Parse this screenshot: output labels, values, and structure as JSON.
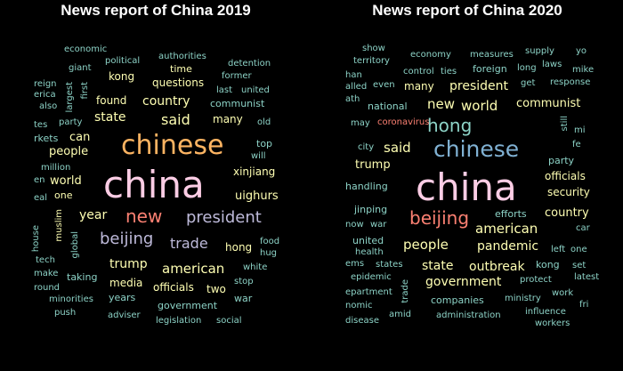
{
  "panels": [
    {
      "title": "News report of China 2019",
      "words": [
        {
          "t": "economic",
          "c": "#8dd3c7"
        },
        {
          "t": "political",
          "c": "#8dd3c7"
        },
        {
          "t": "authorities",
          "c": "#8dd3c7"
        },
        {
          "t": "time",
          "c": "#ffffb3"
        },
        {
          "t": "detention",
          "c": "#8dd3c7"
        },
        {
          "t": "giant",
          "c": "#8dd3c7"
        },
        {
          "t": "kong",
          "c": "#ffffb3"
        },
        {
          "t": "former",
          "c": "#8dd3c7"
        },
        {
          "t": "reign",
          "c": "#8dd3c7"
        },
        {
          "t": "questions",
          "c": "#ffffb3"
        },
        {
          "t": "erica",
          "c": "#8dd3c7"
        },
        {
          "t": "largest",
          "c": "#8dd3c7"
        },
        {
          "t": "first",
          "c": "#8dd3c7"
        },
        {
          "t": "last",
          "c": "#8dd3c7"
        },
        {
          "t": "united",
          "c": "#8dd3c7"
        },
        {
          "t": "also",
          "c": "#8dd3c7"
        },
        {
          "t": "found",
          "c": "#ffffb3"
        },
        {
          "t": "country",
          "c": "#ffffb3"
        },
        {
          "t": "communist",
          "c": "#8dd3c7"
        },
        {
          "t": "state",
          "c": "#ffffb3"
        },
        {
          "t": "said",
          "c": "#ffffb3"
        },
        {
          "t": "many",
          "c": "#ffffb3"
        },
        {
          "t": "tes",
          "c": "#8dd3c7"
        },
        {
          "t": "party",
          "c": "#8dd3c7"
        },
        {
          "t": "old",
          "c": "#8dd3c7"
        },
        {
          "t": "rkets",
          "c": "#8dd3c7"
        },
        {
          "t": "can",
          "c": "#ffffb3"
        },
        {
          "t": "chinese",
          "c": "#fdb462"
        },
        {
          "t": "top",
          "c": "#8dd3c7"
        },
        {
          "t": "people",
          "c": "#ffffb3"
        },
        {
          "t": "will",
          "c": "#8dd3c7"
        },
        {
          "t": "million",
          "c": "#8dd3c7"
        },
        {
          "t": "xinjiang",
          "c": "#ffffb3"
        },
        {
          "t": "en",
          "c": "#8dd3c7"
        },
        {
          "t": "world",
          "c": "#ffffb3"
        },
        {
          "t": "china",
          "c": "#fccde5"
        },
        {
          "t": "one",
          "c": "#ffffb3"
        },
        {
          "t": "eal",
          "c": "#8dd3c7"
        },
        {
          "t": "uighurs",
          "c": "#ffffb3"
        },
        {
          "t": "muslim",
          "c": "#ffffb3"
        },
        {
          "t": "year",
          "c": "#ffffb3"
        },
        {
          "t": "new",
          "c": "#fb8072"
        },
        {
          "t": "president",
          "c": "#bebada"
        },
        {
          "t": "house",
          "c": "#8dd3c7"
        },
        {
          "t": "global",
          "c": "#8dd3c7"
        },
        {
          "t": "beijing",
          "c": "#bebada"
        },
        {
          "t": "trade",
          "c": "#bebada"
        },
        {
          "t": "hong",
          "c": "#ffffb3"
        },
        {
          "t": "food",
          "c": "#8dd3c7"
        },
        {
          "t": "hug",
          "c": "#8dd3c7"
        },
        {
          "t": "tech",
          "c": "#8dd3c7"
        },
        {
          "t": "trump",
          "c": "#ffffb3"
        },
        {
          "t": "american",
          "c": "#ffffb3"
        },
        {
          "t": "white",
          "c": "#8dd3c7"
        },
        {
          "t": "make",
          "c": "#8dd3c7"
        },
        {
          "t": "taking",
          "c": "#8dd3c7"
        },
        {
          "t": "media",
          "c": "#ffffb3"
        },
        {
          "t": "stop",
          "c": "#8dd3c7"
        },
        {
          "t": "round",
          "c": "#8dd3c7"
        },
        {
          "t": "officials",
          "c": "#ffffb3"
        },
        {
          "t": "two",
          "c": "#ffffb3"
        },
        {
          "t": "years",
          "c": "#8dd3c7"
        },
        {
          "t": "war",
          "c": "#8dd3c7"
        },
        {
          "t": "minorities",
          "c": "#8dd3c7"
        },
        {
          "t": "government",
          "c": "#8dd3c7"
        },
        {
          "t": "push",
          "c": "#8dd3c7"
        },
        {
          "t": "adviser",
          "c": "#8dd3c7"
        },
        {
          "t": "legislation",
          "c": "#8dd3c7"
        },
        {
          "t": "social",
          "c": "#8dd3c7"
        }
      ]
    },
    {
      "title": "News report of China 2020",
      "words": [
        {
          "t": "show",
          "c": "#8dd3c7"
        },
        {
          "t": "territory",
          "c": "#8dd3c7"
        },
        {
          "t": "economy",
          "c": "#8dd3c7"
        },
        {
          "t": "measures",
          "c": "#8dd3c7"
        },
        {
          "t": "supply",
          "c": "#8dd3c7"
        },
        {
          "t": "yo",
          "c": "#8dd3c7"
        },
        {
          "t": "laws",
          "c": "#8dd3c7"
        },
        {
          "t": "control",
          "c": "#8dd3c7"
        },
        {
          "t": "ties",
          "c": "#8dd3c7"
        },
        {
          "t": "foreign",
          "c": "#8dd3c7"
        },
        {
          "t": "long",
          "c": "#8dd3c7"
        },
        {
          "t": "mike",
          "c": "#8dd3c7"
        },
        {
          "t": "han",
          "c": "#8dd3c7"
        },
        {
          "t": "even",
          "c": "#8dd3c7"
        },
        {
          "t": "many",
          "c": "#ffffb3"
        },
        {
          "t": "president",
          "c": "#ffffb3"
        },
        {
          "t": "get",
          "c": "#8dd3c7"
        },
        {
          "t": "response",
          "c": "#8dd3c7"
        },
        {
          "t": "alled",
          "c": "#8dd3c7"
        },
        {
          "t": "ath",
          "c": "#8dd3c7"
        },
        {
          "t": "national",
          "c": "#8dd3c7"
        },
        {
          "t": "new",
          "c": "#ffffb3"
        },
        {
          "t": "world",
          "c": "#ffffb3"
        },
        {
          "t": "communist",
          "c": "#ffffb3"
        },
        {
          "t": "still",
          "c": "#8dd3c7"
        },
        {
          "t": "may",
          "c": "#8dd3c7"
        },
        {
          "t": "coronavirus",
          "c": "#fb8072"
        },
        {
          "t": "hong",
          "c": "#8dd3c7"
        },
        {
          "t": "mi",
          "c": "#8dd3c7"
        },
        {
          "t": "fe",
          "c": "#8dd3c7"
        },
        {
          "t": "city",
          "c": "#8dd3c7"
        },
        {
          "t": "said",
          "c": "#ffffb3"
        },
        {
          "t": "chinese",
          "c": "#80b1d3"
        },
        {
          "t": "trump",
          "c": "#ffffb3"
        },
        {
          "t": "party",
          "c": "#8dd3c7"
        },
        {
          "t": "officials",
          "c": "#ffffb3"
        },
        {
          "t": "handling",
          "c": "#8dd3c7"
        },
        {
          "t": "china",
          "c": "#fccde5"
        },
        {
          "t": "security",
          "c": "#ffffb3"
        },
        {
          "t": "jinping",
          "c": "#8dd3c7"
        },
        {
          "t": "beijing",
          "c": "#fb8072"
        },
        {
          "t": "efforts",
          "c": "#8dd3c7"
        },
        {
          "t": "country",
          "c": "#ffffb3"
        },
        {
          "t": "now",
          "c": "#8dd3c7"
        },
        {
          "t": "war",
          "c": "#8dd3c7"
        },
        {
          "t": "american",
          "c": "#ffffb3"
        },
        {
          "t": "car",
          "c": "#8dd3c7"
        },
        {
          "t": "united",
          "c": "#8dd3c7"
        },
        {
          "t": "people",
          "c": "#ffffb3"
        },
        {
          "t": "pandemic",
          "c": "#ffffb3"
        },
        {
          "t": "health",
          "c": "#8dd3c7"
        },
        {
          "t": "left",
          "c": "#8dd3c7"
        },
        {
          "t": "one",
          "c": "#8dd3c7"
        },
        {
          "t": "ems",
          "c": "#8dd3c7"
        },
        {
          "t": "states",
          "c": "#8dd3c7"
        },
        {
          "t": "state",
          "c": "#ffffb3"
        },
        {
          "t": "outbreak",
          "c": "#ffffb3"
        },
        {
          "t": "kong",
          "c": "#8dd3c7"
        },
        {
          "t": "set",
          "c": "#8dd3c7"
        },
        {
          "t": "epidemic",
          "c": "#8dd3c7"
        },
        {
          "t": "trade",
          "c": "#8dd3c7"
        },
        {
          "t": "government",
          "c": "#ffffb3"
        },
        {
          "t": "protect",
          "c": "#8dd3c7"
        },
        {
          "t": "latest",
          "c": "#8dd3c7"
        },
        {
          "t": "epartment",
          "c": "#8dd3c7"
        },
        {
          "t": "work",
          "c": "#8dd3c7"
        },
        {
          "t": "companies",
          "c": "#8dd3c7"
        },
        {
          "t": "ministry",
          "c": "#8dd3c7"
        },
        {
          "t": "nomic",
          "c": "#8dd3c7"
        },
        {
          "t": "fri",
          "c": "#8dd3c7"
        },
        {
          "t": "influence",
          "c": "#8dd3c7"
        },
        {
          "t": "amid",
          "c": "#8dd3c7"
        },
        {
          "t": "administration",
          "c": "#8dd3c7"
        },
        {
          "t": "disease",
          "c": "#8dd3c7"
        },
        {
          "t": "workers",
          "c": "#8dd3c7"
        }
      ]
    }
  ]
}
